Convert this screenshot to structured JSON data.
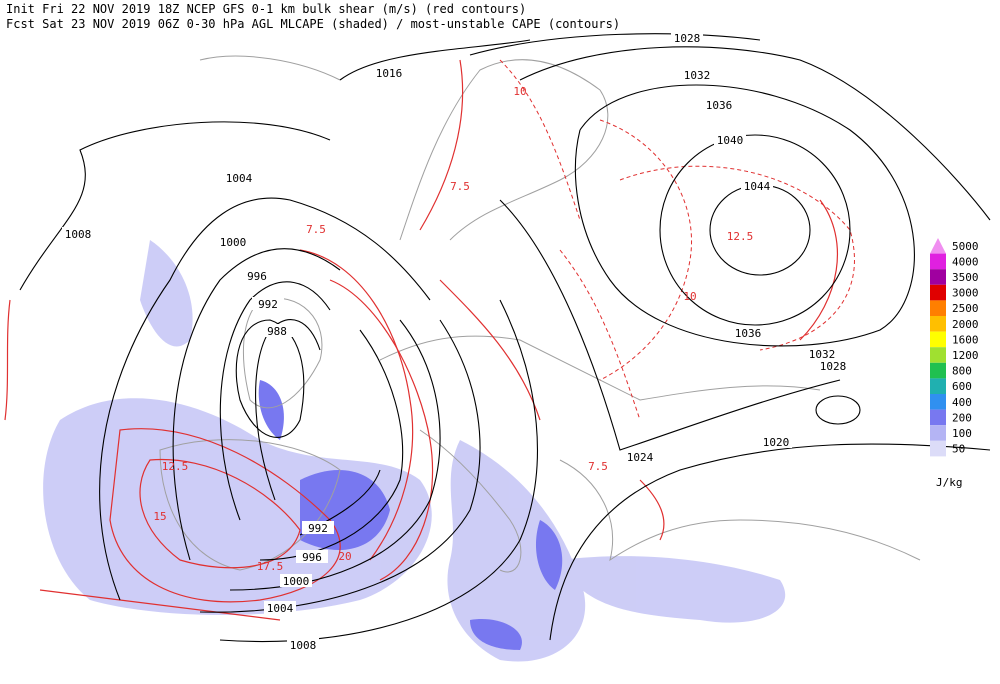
{
  "header": {
    "line1": "Init  Fri 22 NOV 2019 18Z   NCEP GFS 0-1 km bulk shear (m/s) (red contours)",
    "line2": "Fcst Sat 23 NOV 2019 06Z   0-30 hPa AGL MLCAPE (shaded) / most-unstable CAPE (contours)"
  },
  "legend": {
    "levels": [
      {
        "label": "5000",
        "color": "#f08ef0"
      },
      {
        "label": "4000",
        "color": "#e020e0"
      },
      {
        "label": "3500",
        "color": "#a000a0"
      },
      {
        "label": "3000",
        "color": "#e00000"
      },
      {
        "label": "2500",
        "color": "#ff7f00"
      },
      {
        "label": "2000",
        "color": "#ffbf00"
      },
      {
        "label": "1600",
        "color": "#ffff00"
      },
      {
        "label": "1200",
        "color": "#a0e030"
      },
      {
        "label": "800",
        "color": "#20c050"
      },
      {
        "label": "600",
        "color": "#20b0b0"
      },
      {
        "label": "400",
        "color": "#3090f0"
      },
      {
        "label": "200",
        "color": "#7878f0"
      },
      {
        "label": "100",
        "color": "#b4b4f4"
      },
      {
        "label": "50",
        "color": "#dcdcf8"
      }
    ],
    "unit": "J/kg"
  },
  "isobar_labels": [
    "1028",
    "1032",
    "1036",
    "1040",
    "1044",
    "1016",
    "1004",
    "1008",
    "1000",
    "996",
    "992",
    "988",
    "1036",
    "1032",
    "1028",
    "1020",
    "1024",
    "992",
    "996",
    "1000",
    "1004",
    "1008"
  ],
  "shear_labels": [
    "7.5",
    "10",
    "7.5",
    "12.5",
    "15",
    "17.5",
    "20",
    "12.5",
    "10",
    "7.5"
  ]
}
